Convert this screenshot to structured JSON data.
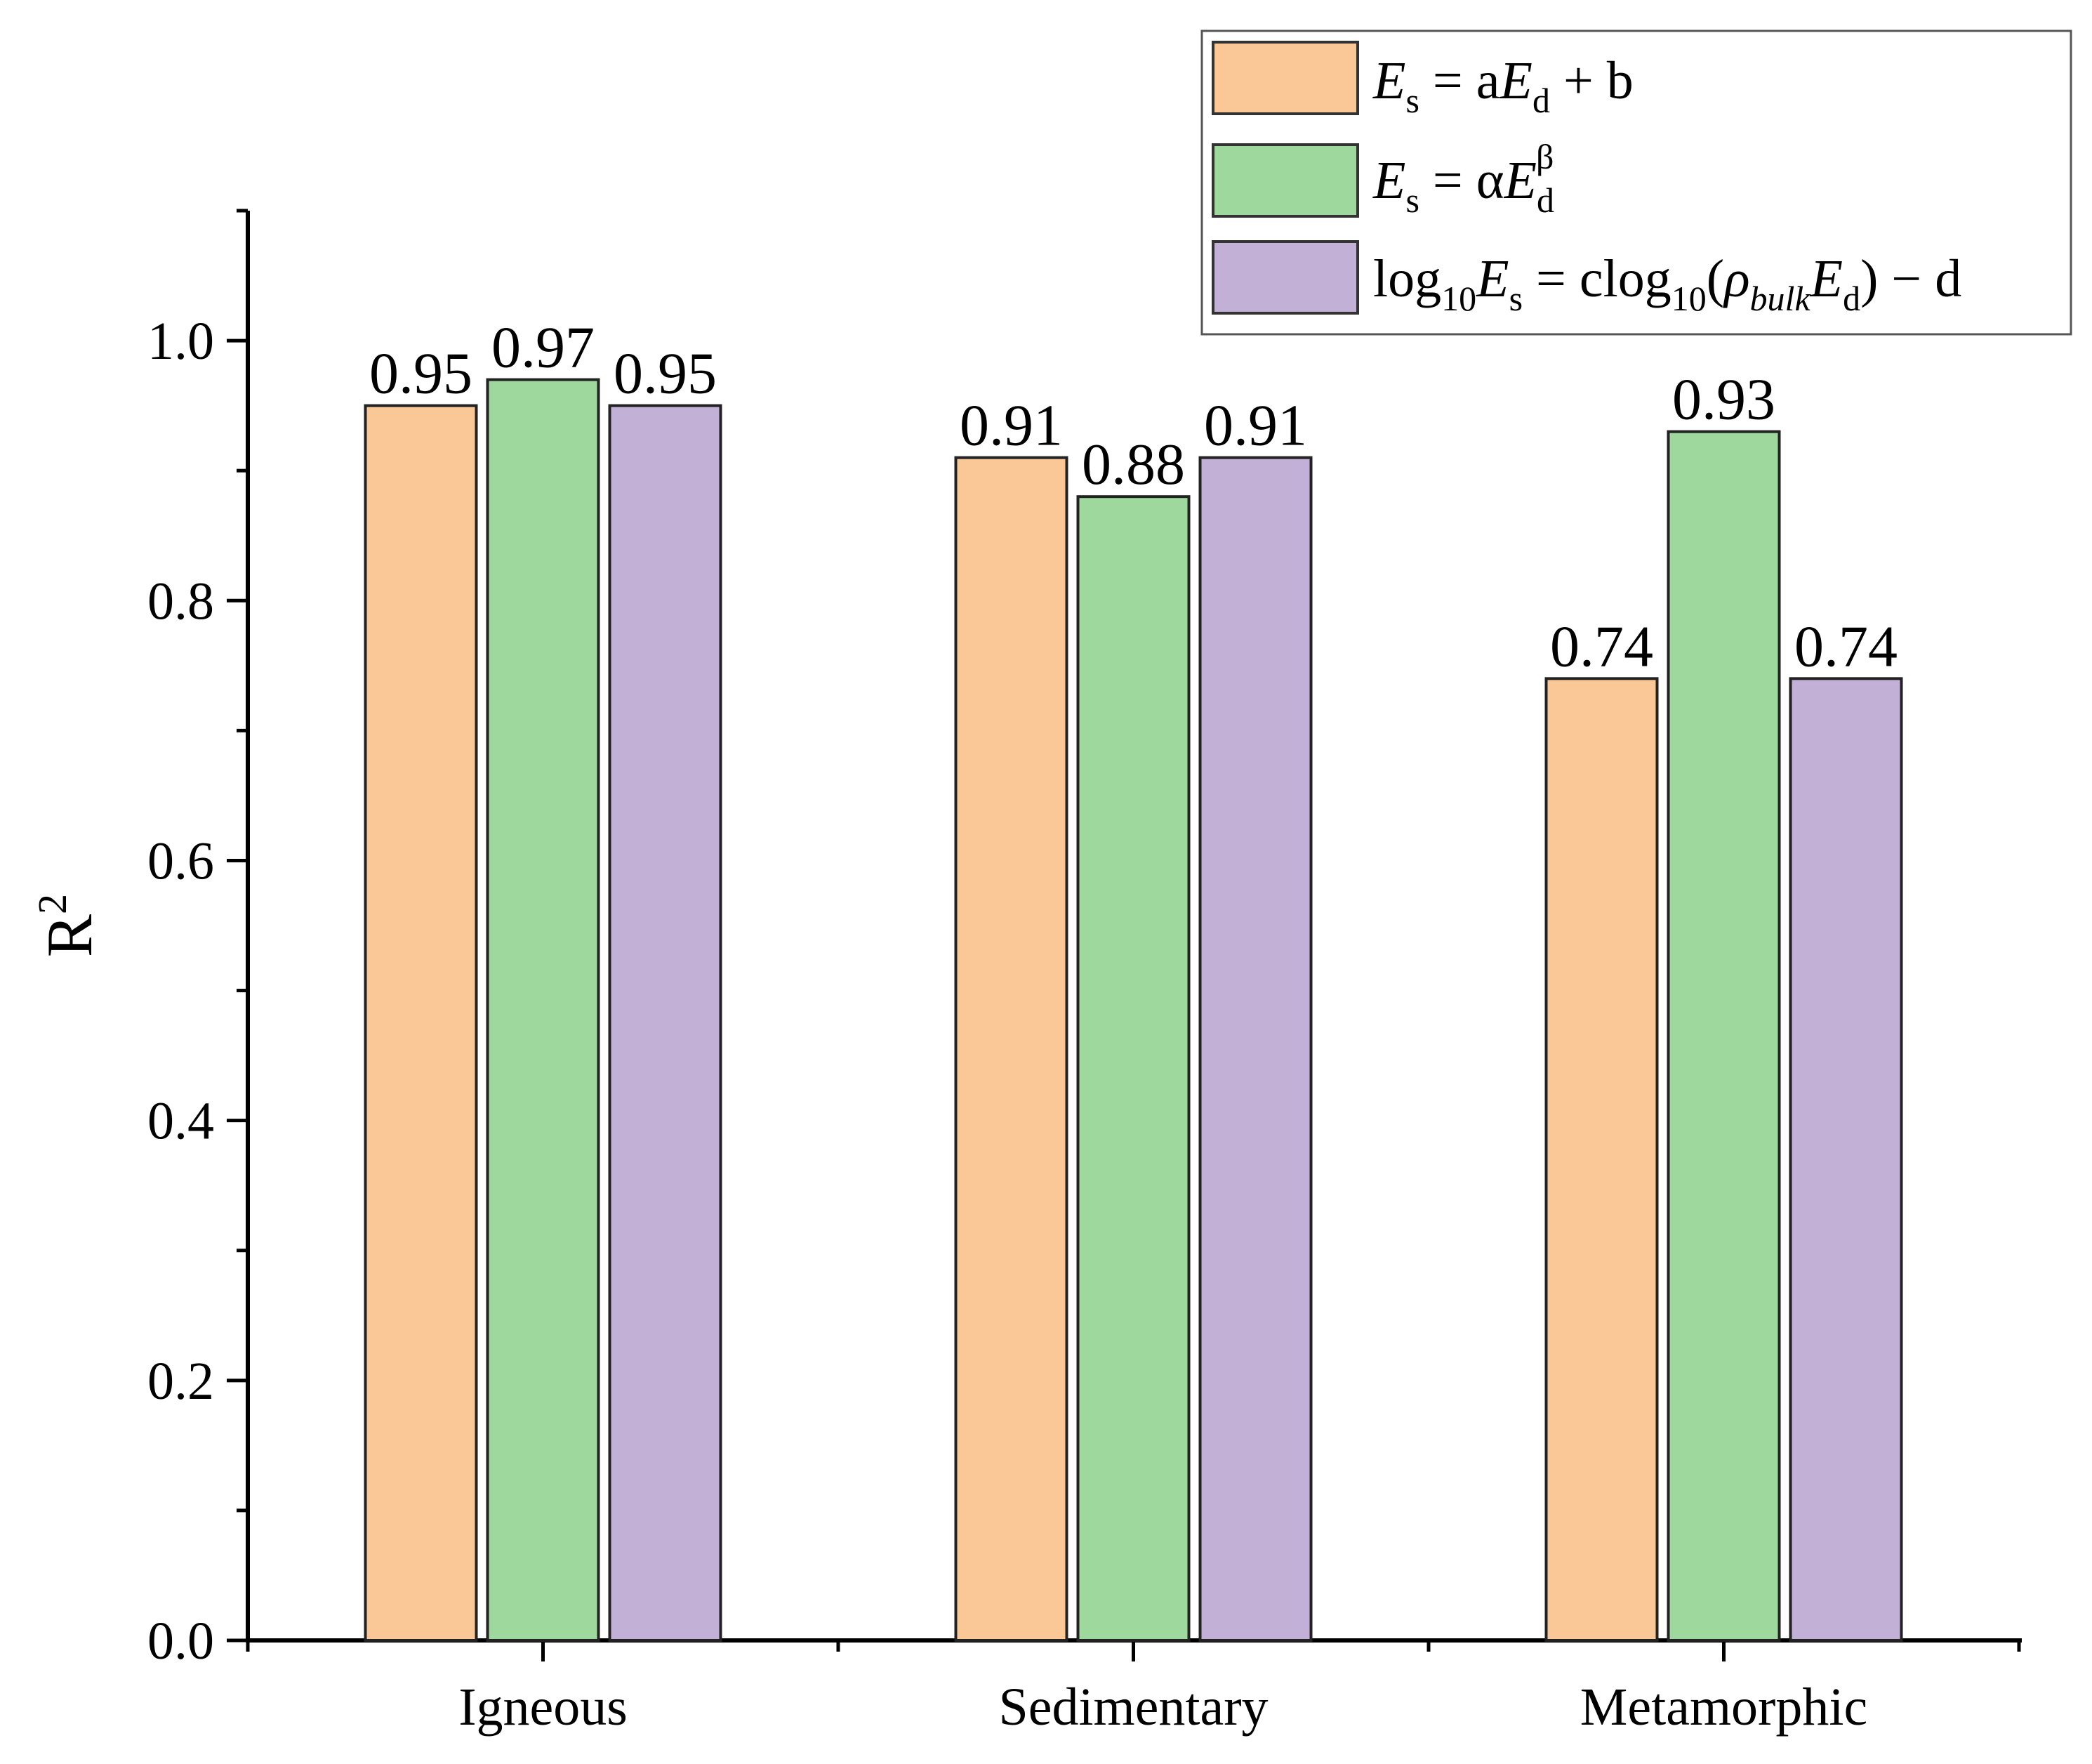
{
  "chart_data": {
    "type": "bar",
    "categories": [
      "Igneous",
      "Sedimentary",
      "Metamorphic"
    ],
    "series": [
      {
        "name": "Es = aEd + b",
        "color": "#FAC896",
        "values": [
          0.95,
          0.91,
          0.74
        ]
      },
      {
        "name": "Es = αEd^β",
        "color": "#9ED89C",
        "values": [
          0.97,
          0.88,
          0.93
        ]
      },
      {
        "name": "log10Es = clog10(ρbulkEd) − d",
        "color": "#C3B0D6",
        "values": [
          0.95,
          0.91,
          0.74
        ]
      }
    ],
    "value_labels": [
      [
        "0.95",
        "0.97",
        "0.95"
      ],
      [
        "0.91",
        "0.88",
        "0.91"
      ],
      [
        "0.74",
        "0.93",
        "0.74"
      ]
    ],
    "ylabel": "R",
    "ylabel_superscript": "2",
    "xlabel": "",
    "ylim": [
      0,
      1.1
    ],
    "yticks": [
      0.0,
      0.2,
      0.4,
      0.6,
      0.8,
      1.0
    ],
    "ytick_labels": [
      "0.0",
      "0.2",
      "0.4",
      "0.6",
      "0.8",
      "1.0"
    ],
    "grid": false,
    "legend_position": "top-right",
    "legend": {
      "entry1": {
        "E": "E",
        "s": "s",
        "eq": " = a",
        "E2": "E",
        "d": "d",
        "rest": " + b"
      },
      "entry2": {
        "E": "E",
        "s": "s",
        "eq": " = α",
        "E2": "E",
        "d": "d",
        "beta": "β"
      },
      "entry3": {
        "log": "log",
        "ten": "10",
        "E": "E",
        "s": "s",
        "eq": " = clog",
        "ten2": "10",
        "paren": "(",
        "rho": "ρ",
        "bulk": "bulk",
        "E2": "E",
        "d": "d",
        "rest": ") − d"
      }
    }
  }
}
